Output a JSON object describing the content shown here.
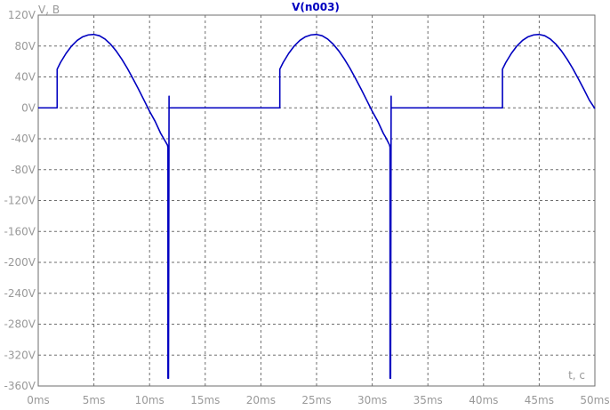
{
  "chart_data": {
    "type": "line",
    "title": "V(n003)",
    "xlabel": "t, c",
    "ylabel": "V, B",
    "xlim": [
      0,
      50
    ],
    "ylim": [
      -360,
      120
    ],
    "x_unit": "ms",
    "grid": true,
    "x_ticks": [
      0,
      5,
      10,
      15,
      20,
      25,
      30,
      35,
      40,
      45,
      50
    ],
    "x_tick_labels": [
      "0ms",
      "5ms",
      "10ms",
      "15ms",
      "20ms",
      "25ms",
      "30ms",
      "35ms",
      "40ms",
      "45ms",
      "50ms"
    ],
    "y_ticks": [
      120,
      80,
      40,
      0,
      -40,
      -80,
      -120,
      -160,
      -200,
      -240,
      -280,
      -320,
      -360
    ],
    "y_tick_labels": [
      "120V",
      "80V",
      "40V",
      "0V",
      "-40V",
      "-80V",
      "-120V",
      "-160V",
      "-200V",
      "-240V",
      "-280V",
      "-320V",
      "-360V"
    ],
    "colors": {
      "series": "#0000c0",
      "title": "#0000c0",
      "grid": "#6e6e6e",
      "axis_text": "#999999"
    },
    "series": [
      {
        "name": "V(n003)",
        "x": [
          0,
          1.7,
          1.7,
          2,
          2.5,
          3,
          3.5,
          4,
          4.5,
          5,
          5.5,
          6,
          6.5,
          7,
          7.5,
          8,
          8.5,
          9,
          9.5,
          10,
          10.5,
          11,
          11.2,
          11.6,
          11.65,
          11.65,
          11.7,
          11.75,
          11.75,
          12,
          20,
          21.7,
          21.7,
          22,
          22.5,
          23,
          23.5,
          24,
          24.5,
          25,
          25.5,
          26,
          26.5,
          27,
          27.5,
          28,
          28.5,
          29,
          29.5,
          30,
          30.5,
          31,
          31.2,
          31.55,
          31.6,
          31.6,
          31.65,
          31.7,
          31.7,
          32,
          40,
          41.7,
          41.7,
          42,
          42.5,
          43,
          43.5,
          44,
          44.5,
          45,
          45.5,
          46,
          46.5,
          47,
          47.5,
          48,
          48.5,
          49,
          49.5,
          50
        ],
        "y": [
          0,
          0,
          50,
          58.7,
          70.5,
          80.1,
          87.3,
          92,
          94.4,
          95,
          93.3,
          89,
          82.3,
          73.6,
          63.1,
          51.2,
          38,
          24.3,
          10,
          -4.5,
          -17.5,
          -33.1,
          -38,
          -48,
          -51,
          -350,
          -350,
          15,
          0,
          0,
          0,
          0,
          50,
          58.7,
          70.5,
          80.1,
          87.3,
          92,
          94.4,
          95,
          93.3,
          89,
          82.3,
          73.6,
          63.1,
          51.2,
          38,
          24.3,
          10,
          -4.5,
          -17.5,
          -33.1,
          -38,
          -48,
          -51,
          -350,
          -350,
          15,
          0,
          0,
          0,
          0,
          50,
          58.7,
          70.5,
          80.1,
          87.3,
          92,
          94.4,
          95,
          93.3,
          89,
          82.3,
          73.6,
          63.1,
          51.2,
          38,
          24.3,
          10,
          -1
        ]
      }
    ]
  }
}
